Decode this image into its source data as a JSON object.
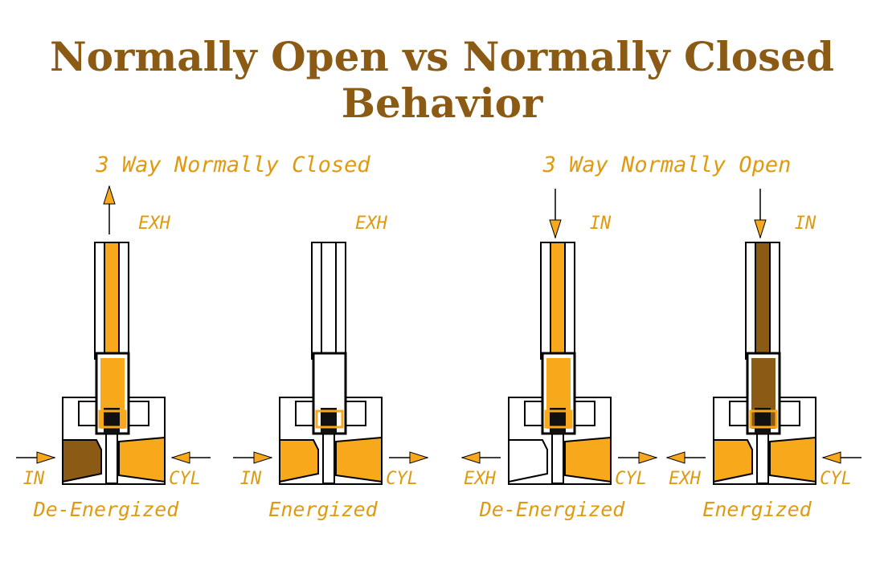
{
  "title": {
    "lines": [
      "Normally Open vs Normally Closed",
      "Behavior"
    ]
  },
  "diagrams": [
    {
      "heading": "3 Way Normally Closed",
      "valves": [
        {
          "top_port": "EXH",
          "left_port": "IN",
          "right_port": "CYL",
          "state": "De-Energized"
        },
        {
          "top_port": "EXH",
          "left_port": "IN",
          "right_port": "CYL",
          "state": "Energized"
        }
      ]
    },
    {
      "heading": "3 Way Normally Open",
      "valves": [
        {
          "top_port": "IN",
          "left_port": "EXH",
          "right_port": "CYL",
          "state": "De-Energized"
        },
        {
          "top_port": "IN",
          "left_port": "EXH",
          "right_port": "CYL",
          "state": "Energized"
        }
      ]
    }
  ]
}
